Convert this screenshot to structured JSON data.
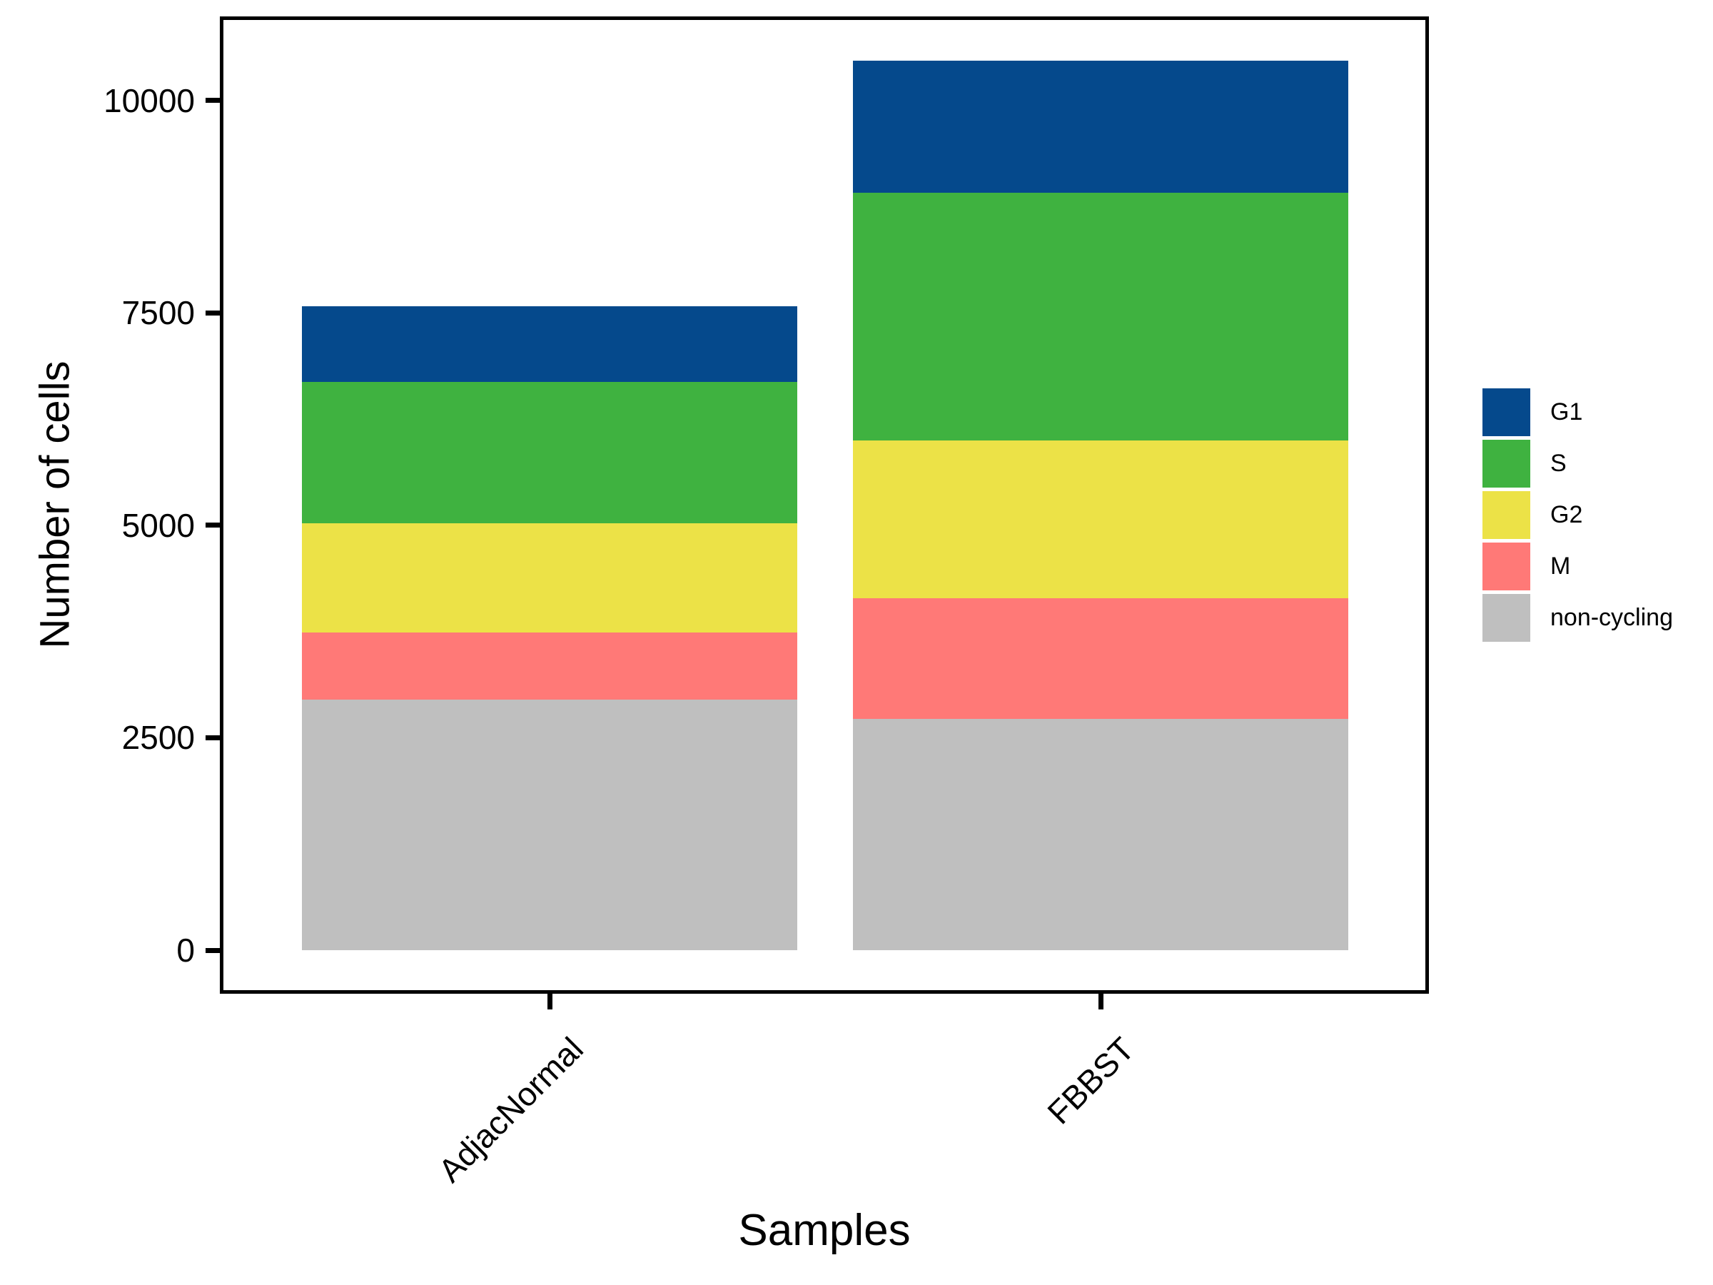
{
  "chart_data": {
    "type": "bar",
    "stacked": true,
    "title": "",
    "xlabel": "Samples",
    "ylabel": "Number of cells",
    "categories": [
      "AdjacNormal",
      "FBBST"
    ],
    "series": [
      {
        "name": "non-cycling",
        "color": "#BFBFBF",
        "values": [
          2950,
          2720
        ]
      },
      {
        "name": "M",
        "color": "#FF7977",
        "values": [
          790,
          1420
        ]
      },
      {
        "name": "G2",
        "color": "#ECE247",
        "values": [
          1280,
          1860
        ]
      },
      {
        "name": "S",
        "color": "#3FB240",
        "values": [
          1670,
          2910
        ]
      },
      {
        "name": "G1",
        "color": "#05498C",
        "values": [
          890,
          1560
        ]
      }
    ],
    "totals": [
      7580,
      10470
    ],
    "yticks": [
      0,
      2500,
      5000,
      7500,
      10000
    ],
    "ylim": [
      0,
      11000
    ],
    "grid": false,
    "legend": {
      "position": "right",
      "order": [
        "G1",
        "S",
        "G2",
        "M",
        "non-cycling"
      ]
    },
    "axis_color": "#000000",
    "background": "#FFFFFF"
  }
}
